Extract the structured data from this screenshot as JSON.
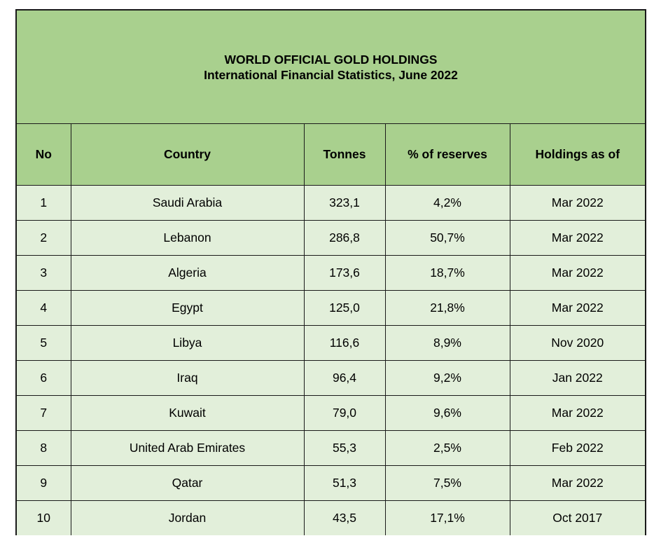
{
  "title": {
    "line1": "WORLD OFFICIAL GOLD HOLDINGS",
    "line2": "International Financial Statistics, June 2022"
  },
  "table": {
    "headers": [
      "No",
      "Country",
      "Tonnes",
      "% of reserves",
      "Holdings as of"
    ],
    "rows": [
      [
        "1",
        "Saudi Arabia",
        "323,1",
        "4,2%",
        "Mar 2022"
      ],
      [
        "2",
        "Lebanon",
        "286,8",
        "50,7%",
        "Mar 2022"
      ],
      [
        "3",
        "Algeria",
        "173,6",
        "18,7%",
        "Mar 2022"
      ],
      [
        "4",
        "Egypt",
        "125,0",
        "21,8%",
        "Mar 2022"
      ],
      [
        "5",
        "Libya",
        "116,6",
        "8,9%",
        "Nov 2020"
      ],
      [
        "6",
        "Iraq",
        "96,4",
        "9,2%",
        "Jan 2022"
      ],
      [
        "7",
        "Kuwait",
        "79,0",
        "9,6%",
        "Mar 2022"
      ],
      [
        "8",
        "United Arab Emirates",
        "55,3",
        "2,5%",
        "Feb 2022"
      ],
      [
        "9",
        "Qatar",
        "51,3",
        "7,5%",
        "Mar 2022"
      ],
      [
        "10",
        "Jordan",
        "43,5",
        "17,1%",
        "Oct 2017"
      ]
    ]
  },
  "colors": {
    "header_fill": "#a9d08e",
    "body_fill": "#e2efda",
    "border": "#1a1a1a"
  }
}
